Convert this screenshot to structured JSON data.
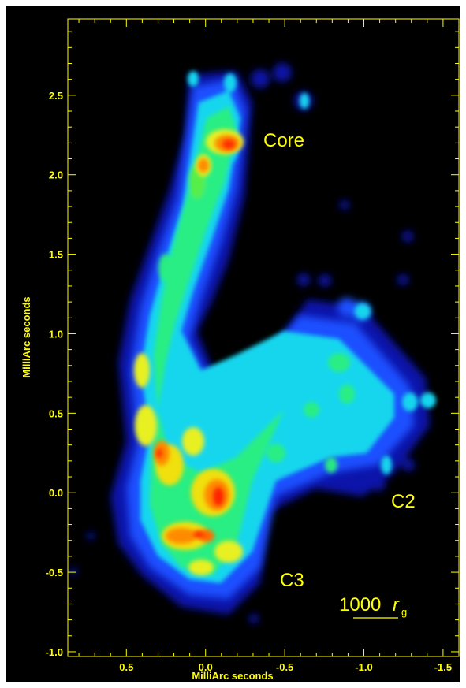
{
  "plot": {
    "x_axis_label": "MilliArc seconds",
    "y_axis_label": "MilliArc seconds",
    "x_ticks": [
      "0.5",
      "0.0",
      "-0.5",
      "-1.0",
      "-1.5"
    ],
    "y_ticks": [
      "2.5",
      "2.0",
      "1.5",
      "1.0",
      "0.5",
      "0.0",
      "-0.5",
      "-1.0"
    ],
    "x_range": [
      0.87,
      -1.6
    ],
    "y_range": [
      -1.03,
      2.98
    ]
  },
  "annotations": {
    "core": "Core",
    "c2": "C2",
    "c3": "C3",
    "scale_value": "1000",
    "scale_symbol": "r",
    "scale_subscript": "g"
  },
  "colors": {
    "frame": "#ffffff",
    "background": "#000000",
    "axis": "#ffff00",
    "label": "#ffff00"
  }
}
